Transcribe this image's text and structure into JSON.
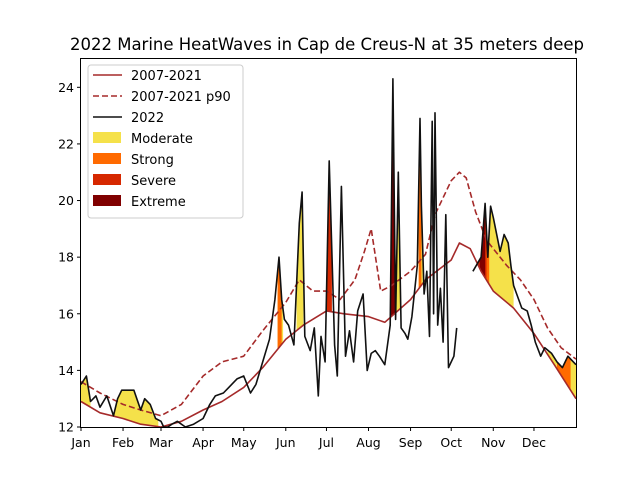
{
  "chart_data": {
    "type": "line",
    "title": "2022 Marine HeatWaves in Cap de Creus-N at 35 meters deep",
    "xlabel": "",
    "ylabel": "",
    "ylim": [
      12,
      25
    ],
    "yticks": [
      12,
      14,
      16,
      18,
      20,
      22,
      24
    ],
    "xlim": [
      1,
      366
    ],
    "xticks": [
      {
        "day": 1,
        "label": "Jan"
      },
      {
        "day": 32,
        "label": "Feb"
      },
      {
        "day": 60,
        "label": "Mar"
      },
      {
        "day": 91,
        "label": "Apr"
      },
      {
        "day": 121,
        "label": "May"
      },
      {
        "day": 152,
        "label": "Jun"
      },
      {
        "day": 182,
        "label": "Jul"
      },
      {
        "day": 213,
        "label": "Aug"
      },
      {
        "day": 244,
        "label": "Sep"
      },
      {
        "day": 274,
        "label": "Oct"
      },
      {
        "day": 305,
        "label": "Nov"
      },
      {
        "day": 335,
        "label": "Dec"
      }
    ],
    "legend": {
      "placement": "top-left",
      "entries": [
        {
          "label": "2007-2021",
          "kind": "line",
          "color": "#a52a2a",
          "dash": false
        },
        {
          "label": "2007-2021 p90",
          "kind": "line",
          "color": "#a52a2a",
          "dash": true
        },
        {
          "label": "2022",
          "kind": "line",
          "color": "#111111",
          "dash": false
        },
        {
          "label": "Moderate",
          "kind": "patch",
          "color": "#f5e14a"
        },
        {
          "label": "Strong",
          "kind": "patch",
          "color": "#ff6a00"
        },
        {
          "label": "Severe",
          "kind": "patch",
          "color": "#d62800"
        },
        {
          "label": "Extreme",
          "kind": "patch",
          "color": "#800000"
        }
      ]
    },
    "series": [
      {
        "name": "2007-2021",
        "color": "#a52a2a",
        "x": [
          1,
          15,
          32,
          45,
          60,
          75,
          91,
          105,
          121,
          135,
          152,
          165,
          182,
          195,
          213,
          225,
          244,
          255,
          274,
          280,
          288,
          296,
          305,
          320,
          335,
          350,
          366
        ],
        "y": [
          12.9,
          12.5,
          12.3,
          12.1,
          12.0,
          12.2,
          12.6,
          12.9,
          13.4,
          14.1,
          15.1,
          15.6,
          16.1,
          16.0,
          15.9,
          15.7,
          16.5,
          17.2,
          17.9,
          18.5,
          18.3,
          17.5,
          16.8,
          16.2,
          15.3,
          14.2,
          13.0
        ]
      },
      {
        "name": "2007-2021 p90",
        "color": "#a52a2a",
        "dash": true,
        "x": [
          1,
          15,
          32,
          45,
          60,
          75,
          91,
          105,
          121,
          135,
          152,
          162,
          172,
          182,
          192,
          203,
          210,
          215,
          222,
          230,
          244,
          255,
          262,
          274,
          280,
          285,
          292,
          300,
          305,
          315,
          325,
          335,
          345,
          355,
          366
        ],
        "y": [
          13.6,
          13.2,
          12.8,
          12.6,
          12.4,
          12.8,
          13.8,
          14.3,
          14.5,
          15.4,
          16.4,
          17.2,
          16.8,
          16.8,
          16.5,
          17.2,
          18.2,
          19.0,
          16.8,
          17.0,
          17.5,
          18.1,
          19.5,
          20.7,
          21.0,
          20.8,
          19.6,
          18.6,
          18.3,
          17.7,
          17.2,
          16.5,
          15.5,
          14.8,
          14.4
        ]
      },
      {
        "name": "2022",
        "color": "#111111",
        "x": [
          1,
          5,
          8,
          12,
          15,
          20,
          25,
          28,
          31,
          35,
          40,
          45,
          48,
          52,
          56,
          60,
          62,
          65,
          68,
          72,
          78,
          84,
          91,
          96,
          100,
          106,
          110,
          116,
          121,
          126,
          130,
          135,
          140,
          144,
          147,
          149,
          151,
          154,
          158,
          162,
          164,
          166,
          170,
          173,
          176,
          178,
          181,
          184,
          188,
          190,
          193,
          196,
          199,
          202,
          205,
          209,
          212,
          215,
          218,
          221,
          225,
          229,
          231,
          233,
          235,
          237,
          240,
          242,
          245,
          249,
          251,
          252,
          254,
          256,
          258,
          260,
          261,
          262,
          264,
          266,
          268,
          270,
          272,
          276,
          278,
          280,
          290,
          296,
          299,
          301,
          303,
          305,
          310,
          313,
          316,
          318,
          320,
          326,
          330,
          333,
          336,
          340,
          343,
          348,
          352,
          356,
          360,
          366
        ],
        "y": [
          13.5,
          13.8,
          12.9,
          13.1,
          12.7,
          13.1,
          12.4,
          13.0,
          13.3,
          13.3,
          13.3,
          12.6,
          13.0,
          12.8,
          12.3,
          12.2,
          11.5,
          12.0,
          12.1,
          12.2,
          11.9,
          12.1,
          12.3,
          12.8,
          13.1,
          13.2,
          13.4,
          13.7,
          13.8,
          13.2,
          13.5,
          14.3,
          15.1,
          16.5,
          18.0,
          16.5,
          15.8,
          15.6,
          14.9,
          19.2,
          20.3,
          15.2,
          14.7,
          15.5,
          13.1,
          15.2,
          14.3,
          21.4,
          14.9,
          13.8,
          20.5,
          14.5,
          15.4,
          14.3,
          16.1,
          16.7,
          14.0,
          14.6,
          14.7,
          14.5,
          14.2,
          15.6,
          24.3,
          15.8,
          21.0,
          15.5,
          15.3,
          15.1,
          15.9,
          17.7,
          22.9,
          19.8,
          16.7,
          17.5,
          15.2,
          22.8,
          16.0,
          23.1,
          15.6,
          16.9,
          15.0,
          19.5,
          14.1,
          14.5,
          15.5,
          null,
          17.5,
          18.0,
          19.9,
          18.0,
          19.8,
          19.4,
          18.2,
          18.8,
          18.5,
          17.7,
          17.0,
          16.2,
          16.1,
          15.6,
          15.0,
          14.5,
          14.8,
          14.6,
          14.3,
          14.1,
          14.5,
          14.2
        ]
      }
    ],
    "heatwave_fills": {
      "Moderate": [
        [
          1,
          8
        ],
        [
          24,
          58
        ],
        [
          146,
          150
        ],
        [
          160,
          165
        ],
        [
          232,
          237
        ],
        [
          250,
          253
        ],
        [
          288,
          320
        ],
        [
          345,
          366
        ]
      ],
      "Strong": [
        [
          146,
          149
        ],
        [
          250,
          252
        ],
        [
          292,
          302
        ],
        [
          352,
          362
        ]
      ],
      "Severe": [
        [
          182,
          186
        ],
        [
          292,
          300
        ]
      ],
      "Extreme": [
        [
          229,
          233
        ],
        [
          295,
          299
        ]
      ]
    }
  }
}
